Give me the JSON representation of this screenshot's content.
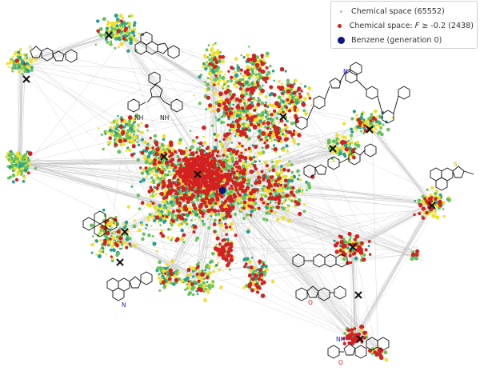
{
  "legend": {
    "chemical_space": "Chemical space (65552)",
    "filtered_prefix": "Chemical space: ",
    "filtered_var": "F",
    "filtered_suffix": " ≥ -0.2 (2438)",
    "benzene": "Benzene (generation 0)"
  },
  "molecule_labels": {
    "nh_left": "NH",
    "nh_right": "NH",
    "s_topleft": "S",
    "n_pyridine": "N",
    "s_right": "S",
    "n_bipyridine": "N",
    "o_dibenzofuran": "O",
    "nh_bottom": "NH",
    "o_bottom": "O"
  },
  "colors": {
    "edge": "#c6c6c6",
    "node_yellow": "#f0df2a",
    "node_green": "#66c25a",
    "node_teal": "#25a08c",
    "node_red": "#d42020",
    "benzene": "#0a1780",
    "marker": "#111111"
  }
}
